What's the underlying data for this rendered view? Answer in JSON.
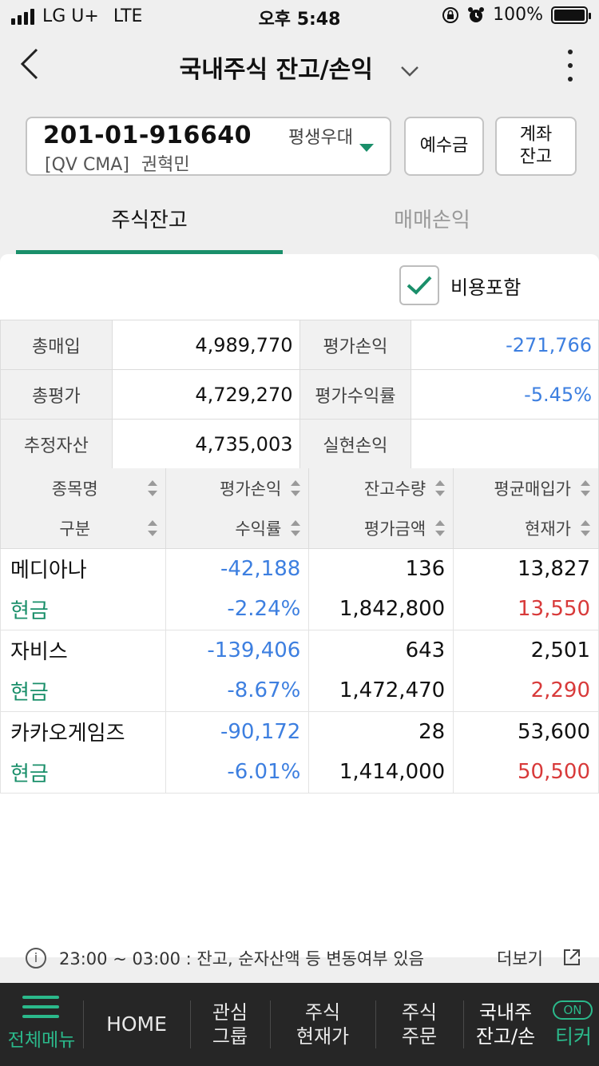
{
  "status": {
    "carrier": "LG U+",
    "network": "LTE",
    "time": "오후 5:48",
    "battery": "100%"
  },
  "header": {
    "title": "국내주식 잔고/손익"
  },
  "account": {
    "number": "201-01-916640",
    "nickname": "평생우대",
    "type": "[QV CMA]",
    "owner": "권혁민"
  },
  "buttons": {
    "deposit": "예수금",
    "balance_line1": "계좌",
    "balance_line2": "잔고"
  },
  "tabs": {
    "active": "주식잔고",
    "inactive": "매매손익"
  },
  "cost_toggle": {
    "label": "비용포함",
    "checked": true
  },
  "summary": {
    "total_buy_label": "총매입",
    "total_buy": "4,989,770",
    "eval_pl_label": "평가손익",
    "eval_pl": "-271,766",
    "total_eval_label": "총평가",
    "total_eval": "4,729,270",
    "return_label": "평가수익률",
    "return": "-5.45%",
    "est_asset_label": "추정자산",
    "est_asset": "4,735,003",
    "realized_label": "실현손익",
    "realized": ""
  },
  "columns": {
    "h1": [
      "종목명",
      "평가손익",
      "잔고수량",
      "평균매입가"
    ],
    "h2": [
      "구분",
      "수익률",
      "평가금액",
      "현재가"
    ]
  },
  "holdings": [
    {
      "name": "메디아나",
      "type": "현금",
      "pl": "-42,188",
      "rate": "-2.24%",
      "qty": "136",
      "amount": "1,842,800",
      "avg": "13,827",
      "price": "13,550"
    },
    {
      "name": "자비스",
      "type": "현금",
      "pl": "-139,406",
      "rate": "-8.67%",
      "qty": "643",
      "amount": "1,472,470",
      "avg": "2,501",
      "price": "2,290"
    },
    {
      "name": "카카오게임즈",
      "type": "현금",
      "pl": "-90,172",
      "rate": "-6.01%",
      "qty": "28",
      "amount": "1,414,000",
      "avg": "53,600",
      "price": "50,500"
    }
  ],
  "notice": {
    "text": "23:00 ~ 03:00 : 잔고, 순자산액 등 변동여부 있음",
    "more": "더보기"
  },
  "bottom_nav": {
    "menu": "전체메뉴",
    "home": "HOME",
    "watch1": "관심",
    "watch2": "그룹",
    "price1": "주식",
    "price2": "현재가",
    "order1": "주식",
    "order2": "주문",
    "balance1": "국내주",
    "balance2": "잔고/손",
    "ticker": "티커",
    "on_badge": "ON"
  },
  "colors": {
    "accent": "#1a8f6a",
    "loss_blue": "#3d7fe0",
    "price_red": "#d83a3a"
  }
}
